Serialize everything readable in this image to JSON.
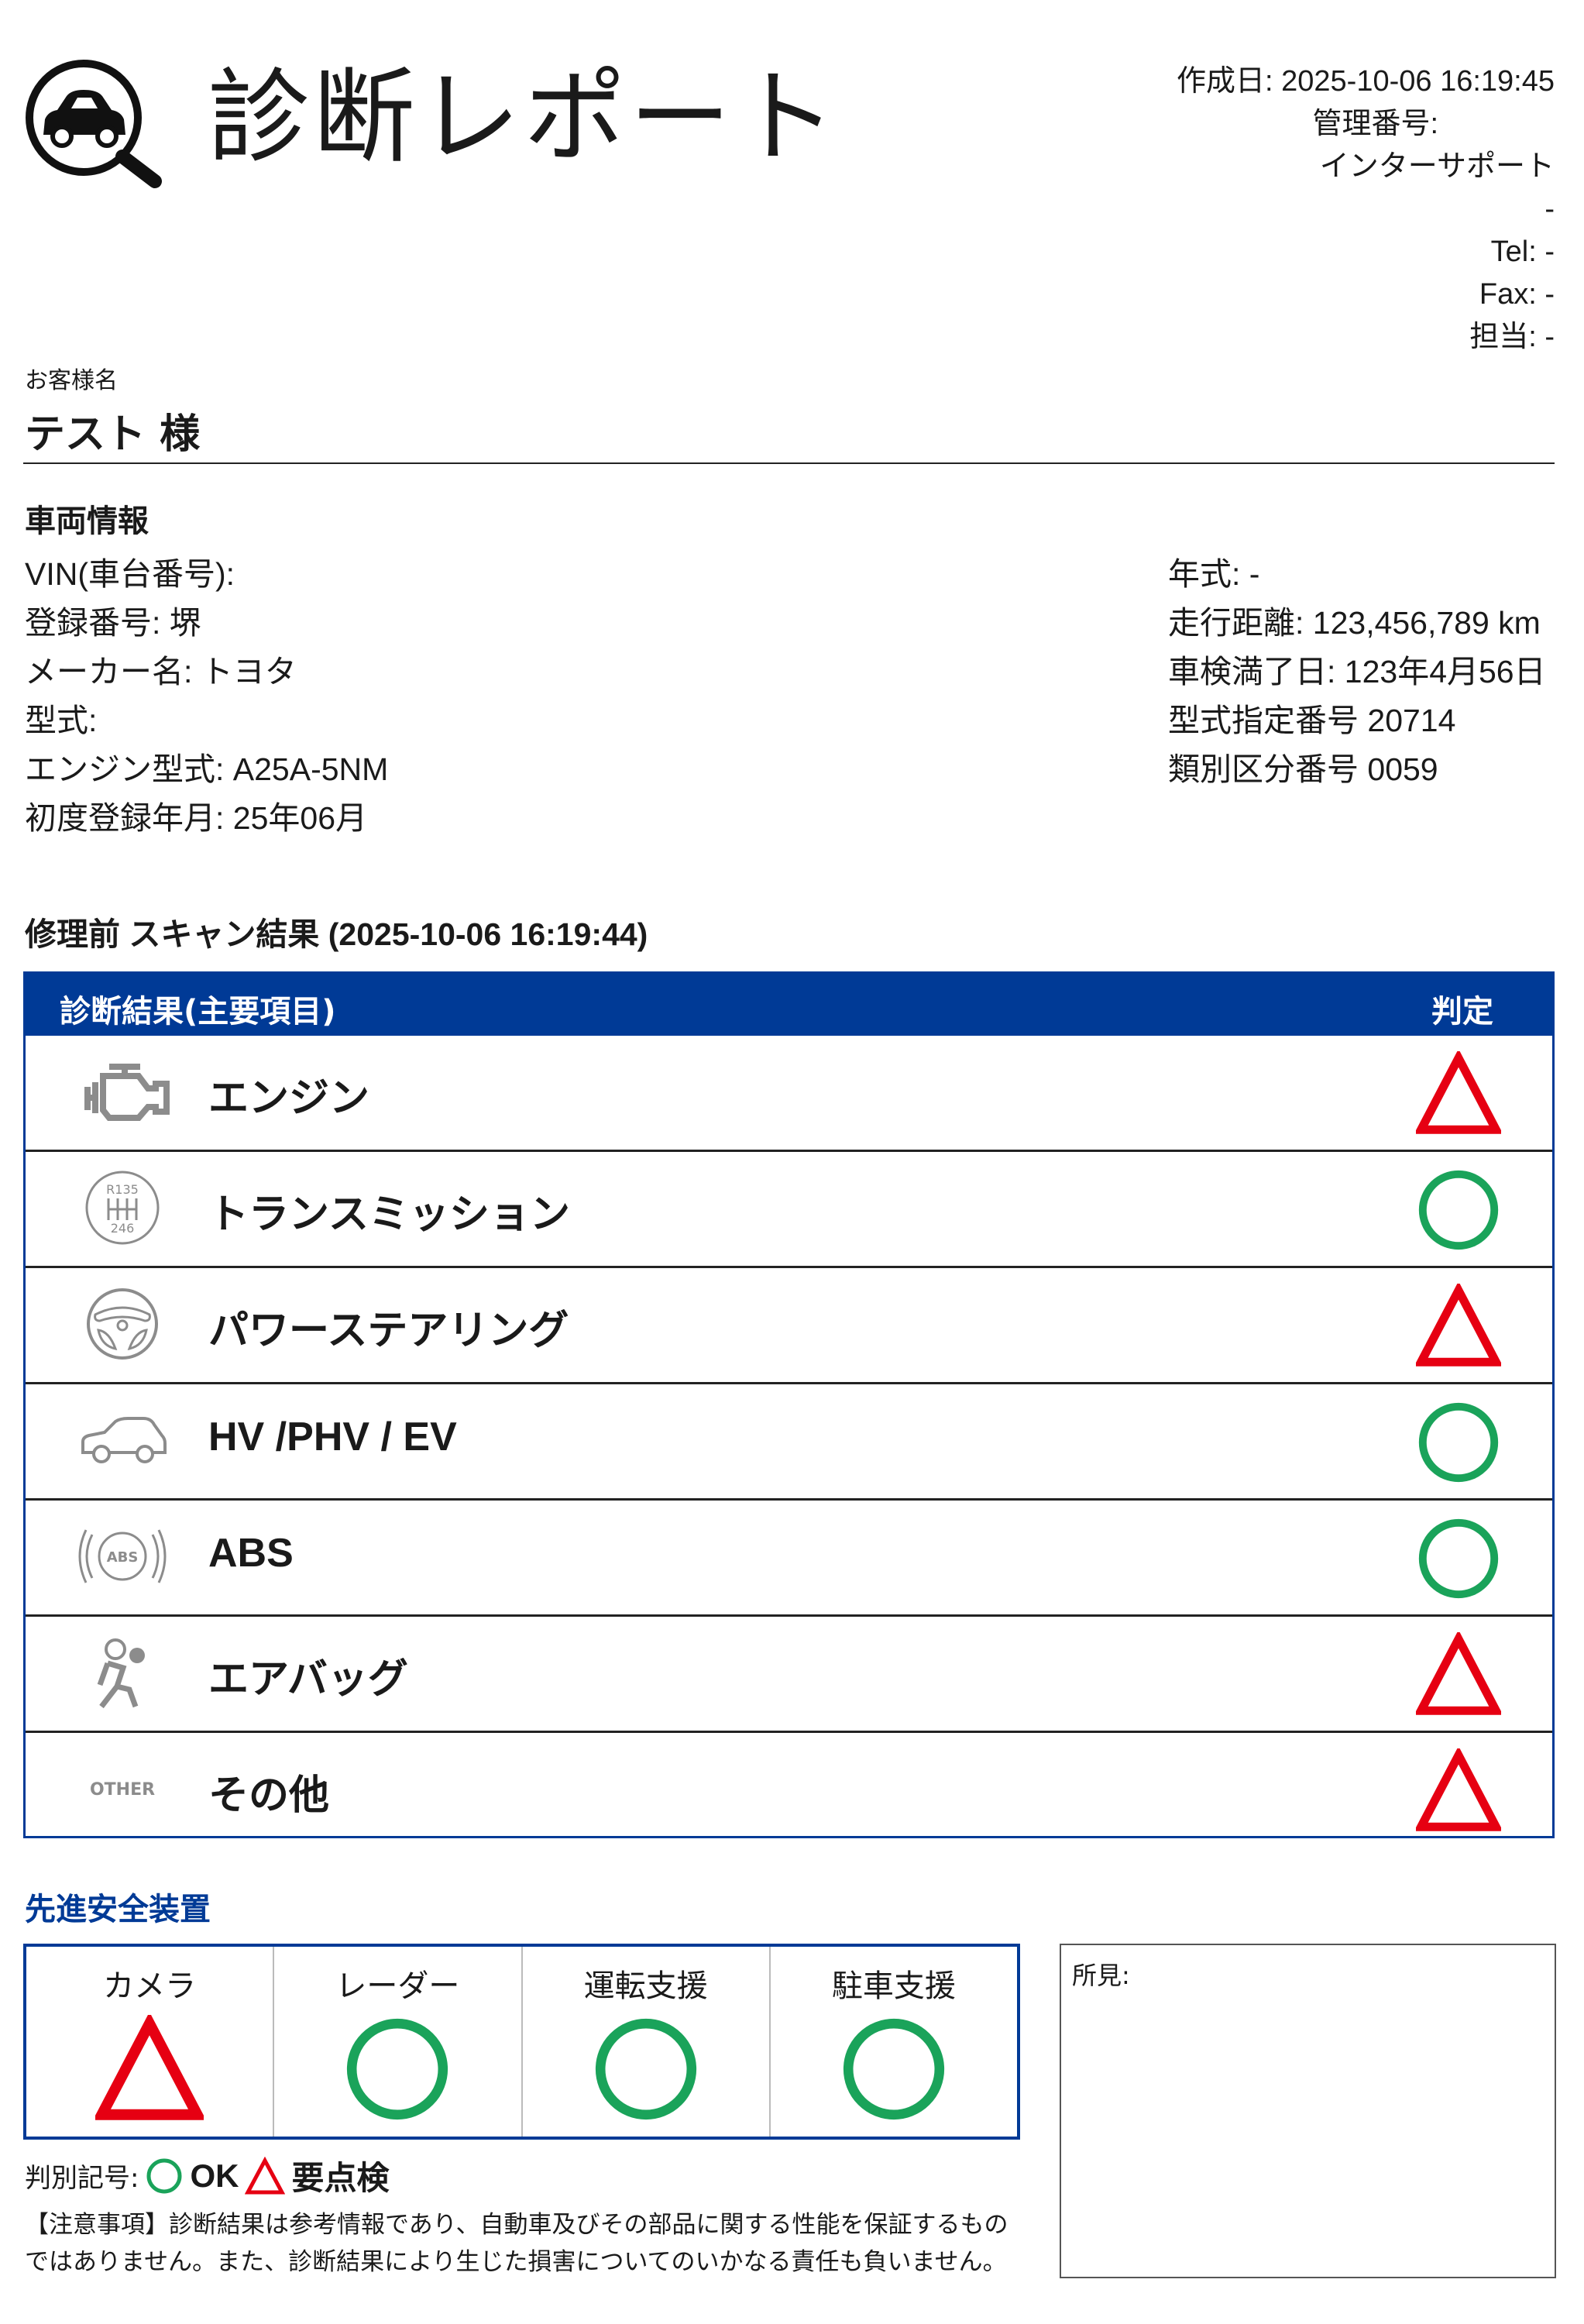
{
  "header": {
    "title": "診断レポート",
    "logo_icon": "car-magnifier-icon",
    "created": "作成日: 2025-10-06 16:19:45",
    "management_no": "管理番号:",
    "company": "インターサポート",
    "address": "-",
    "tel": "Tel: -",
    "fax": "Fax: -",
    "staff": "担当: -"
  },
  "customer": {
    "label": "お客様名",
    "name": "テスト 様"
  },
  "vehicle": {
    "title": "車両情報",
    "left": [
      "VIN(車台番号):",
      "登録番号: 堺",
      "メーカー名: トヨタ",
      "型式:",
      "エンジン型式: A25A-5NM",
      "初度登録年月: 25年06月"
    ],
    "right": [
      "年式: -",
      "走行距離: 123,456,789 km",
      "車検満了日: 123年4月56日",
      "型式指定番号 20714",
      "類別区分番号 0059"
    ]
  },
  "scan": {
    "title": "修理前 スキャン結果 (2025-10-06 16:19:44)",
    "col_item": "診断結果(主要項目)",
    "col_judge": "判定",
    "rows": [
      {
        "label": "エンジン",
        "icon": "engine-icon",
        "judge": "triangle"
      },
      {
        "label": "トランスミッション",
        "icon": "gear-shift-icon",
        "judge": "circle"
      },
      {
        "label": "パワーステアリング",
        "icon": "steering-wheel-icon",
        "judge": "triangle"
      },
      {
        "label": "HV /PHV / EV",
        "icon": "car-icon",
        "judge": "circle"
      },
      {
        "label": "ABS",
        "icon": "abs-icon",
        "judge": "circle"
      },
      {
        "label": "エアバッグ",
        "icon": "airbag-icon",
        "judge": "triangle"
      },
      {
        "label": "その他",
        "icon": "other-icon",
        "icon_text": "OTHER",
        "judge": "triangle"
      }
    ]
  },
  "adas": {
    "title": "先進安全装置",
    "items": [
      {
        "label": "カメラ",
        "judge": "triangle"
      },
      {
        "label": "レーダー",
        "judge": "circle"
      },
      {
        "label": "運転支援",
        "judge": "circle"
      },
      {
        "label": "駐車支援",
        "judge": "circle"
      }
    ]
  },
  "legend": {
    "label": "判別記号:",
    "ok": "OK",
    "check": "要点検"
  },
  "notes": "【注意事項】診断結果は参考情報であり、自動車及びその部品に関する性能を保証するものではありません。また、診断結果により生じた損害についてのいかなる責任も負いません。",
  "findings": {
    "label": "所見:"
  },
  "colors": {
    "primary": "#003a96",
    "ok": "#1aa35a",
    "warn": "#e60012",
    "icon": "#8c8c8c"
  }
}
